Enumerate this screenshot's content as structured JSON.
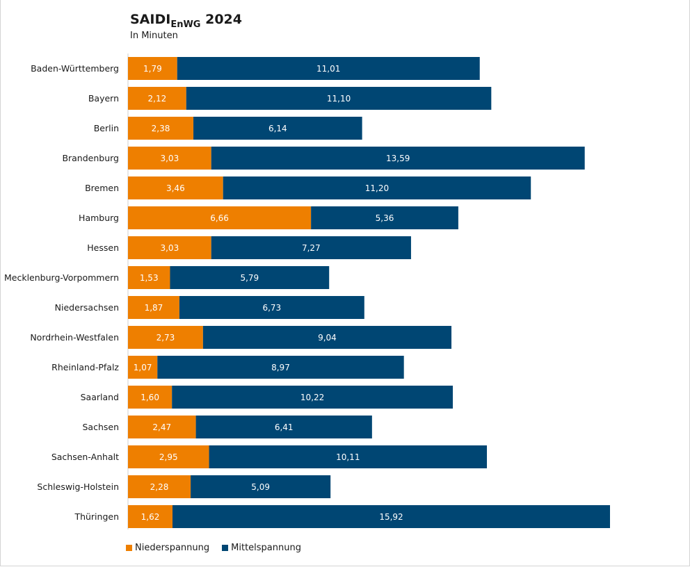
{
  "chart_data": {
    "type": "bar",
    "orientation": "horizontal",
    "stacked": true,
    "title_main": "SAIDI",
    "title_sub": "EnWG",
    "title_year": "2024",
    "title": "SAIDI EnWG 2024",
    "subtitle": "In Minuten",
    "xlabel": "",
    "ylabel": "",
    "grid": false,
    "legend_position": "bottom-left",
    "xlim": [
      0,
      17.54
    ],
    "categories": [
      "Baden-Württemberg",
      "Bayern",
      "Berlin",
      "Brandenburg",
      "Bremen",
      "Hamburg",
      "Hessen",
      "Mecklenburg-Vorpommern",
      "Niedersachsen",
      "Nordrhein-Westfalen",
      "Rheinland-Pfalz",
      "Saarland",
      "Sachsen",
      "Sachsen-Anhalt",
      "Schleswig-Holstein",
      "Thüringen"
    ],
    "series": [
      {
        "name": "Niederspannung",
        "color": "#EE7F00",
        "values": [
          1.79,
          2.12,
          2.38,
          3.03,
          3.46,
          6.66,
          3.03,
          1.53,
          1.87,
          2.73,
          1.07,
          1.6,
          2.47,
          2.95,
          2.28,
          1.62
        ],
        "labels": [
          "1,79",
          "2,12",
          "2,38",
          "3,03",
          "3,46",
          "6,66",
          "3,03",
          "1,53",
          "1,87",
          "2,73",
          "1,07",
          "1,60",
          "2,47",
          "2,95",
          "2,28",
          "1,62"
        ]
      },
      {
        "name": "Mittelspannung",
        "color": "#004673",
        "values": [
          11.01,
          11.1,
          6.14,
          13.59,
          11.2,
          5.36,
          7.27,
          5.79,
          6.73,
          9.04,
          8.97,
          10.22,
          6.41,
          10.11,
          5.09,
          15.92
        ],
        "labels": [
          "11,01",
          "11,10",
          "6,14",
          "13,59",
          "11,20",
          "5,36",
          "7,27",
          "5,79",
          "6,73",
          "9,04",
          "8,97",
          "10,22",
          "6,41",
          "10,11",
          "5,09",
          "15,92"
        ]
      }
    ]
  },
  "legend": {
    "items": [
      {
        "label": "Niederspannung",
        "color": "#EE7F00"
      },
      {
        "label": "Mittelspannung",
        "color": "#004673"
      }
    ]
  }
}
